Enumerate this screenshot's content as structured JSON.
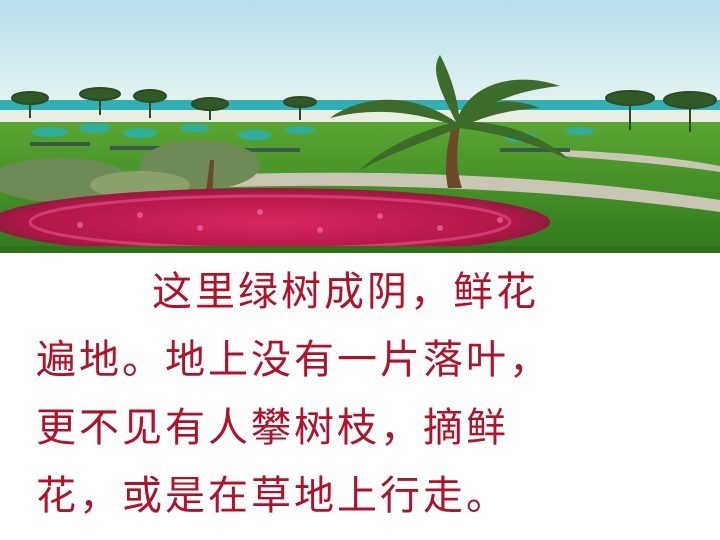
{
  "slide": {
    "photo_label": "park-garden-photo",
    "lines": [
      "这里绿树成阴，鲜花",
      "遍地。地上没有一片落叶，",
      "更不见有人攀树枝，摘鲜",
      "花，或是在草地上行走。"
    ]
  },
  "colors": {
    "text": "#b0122a",
    "sky": "#cfe9ef",
    "sea": "#2fb0b4",
    "grass": "#3f8f25",
    "flowers": "#c81e5a"
  }
}
